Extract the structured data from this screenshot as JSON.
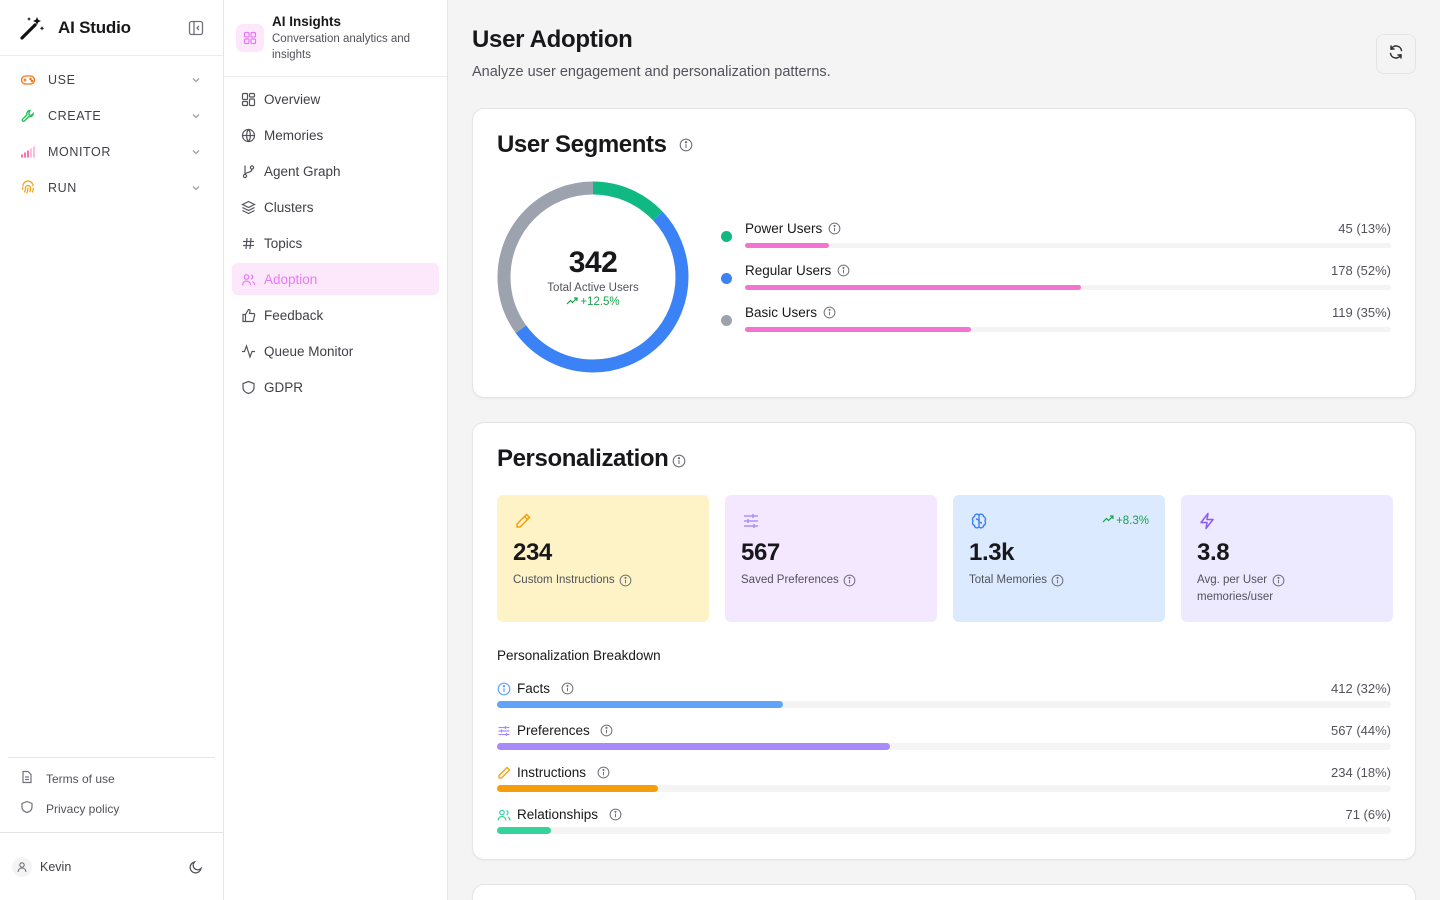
{
  "app": {
    "name": "AI Studio"
  },
  "sidebar": {
    "sections": [
      {
        "label": "USE",
        "icon": "gamepad-icon",
        "color": "#f97316"
      },
      {
        "label": "CREATE",
        "icon": "wrench-icon",
        "color": "#22c55e"
      },
      {
        "label": "MONITOR",
        "icon": "signal-icon",
        "color": "#ec4899"
      },
      {
        "label": "RUN",
        "icon": "fingerprint-icon",
        "color": "#f59e0b"
      }
    ],
    "footer_links": [
      {
        "label": "Terms of use",
        "icon": "document-icon"
      },
      {
        "label": "Privacy policy",
        "icon": "shield-icon"
      }
    ],
    "user": {
      "name": "Kevin"
    }
  },
  "subnav": {
    "title": "AI Insights",
    "subtitle": "Conversation analytics and insights",
    "items": [
      {
        "label": "Overview",
        "icon": "grid-icon"
      },
      {
        "label": "Memories",
        "icon": "globe-icon"
      },
      {
        "label": "Agent Graph",
        "icon": "git-branch-icon"
      },
      {
        "label": "Clusters",
        "icon": "layers-icon"
      },
      {
        "label": "Topics",
        "icon": "hash-icon"
      },
      {
        "label": "Adoption",
        "icon": "users-icon",
        "active": true
      },
      {
        "label": "Feedback",
        "icon": "thumbs-up-icon"
      },
      {
        "label": "Queue Monitor",
        "icon": "activity-icon"
      },
      {
        "label": "GDPR",
        "icon": "shield-icon"
      }
    ]
  },
  "page": {
    "title": "User Adoption",
    "subtitle": "Analyze user engagement and personalization patterns."
  },
  "segments": {
    "title": "User Segments",
    "total": "342",
    "total_label": "Total Active Users",
    "delta": "+12.5%",
    "items": [
      {
        "name": "Power Users",
        "value": "45 (13%)",
        "percent": 13,
        "dot_color": "#10b981"
      },
      {
        "name": "Regular Users",
        "value": "178 (52%)",
        "percent": 52,
        "dot_color": "#3b82f6"
      },
      {
        "name": "Basic Users",
        "value": "119 (35%)",
        "percent": 35,
        "dot_color": "#9ca3af"
      }
    ],
    "bar_color": "#f472d0"
  },
  "personalization": {
    "title": "Personalization",
    "stats": [
      {
        "value": "234",
        "label": "Custom Instructions",
        "sub": "",
        "delta": "",
        "icon": "pencil-icon",
        "bg": "#fef3c7",
        "icon_color": "#f59e0b"
      },
      {
        "value": "567",
        "label": "Saved Preferences",
        "sub": "",
        "delta": "",
        "icon": "sliders-icon",
        "bg": "#f3e8ff",
        "icon_color": "#a78bfa"
      },
      {
        "value": "1.3k",
        "label": "Total Memories",
        "sub": "",
        "delta": "+8.3%",
        "icon": "brain-icon",
        "bg": "#dbeafe",
        "icon_color": "#3b82f6"
      },
      {
        "value": "3.8",
        "label": "Avg. per User",
        "sub": "memories/user",
        "delta": "",
        "icon": "zap-icon",
        "bg": "#ede9fe",
        "icon_color": "#8b5cf6"
      }
    ],
    "breakdown_title": "Personalization Breakdown",
    "breakdown": [
      {
        "name": "Facts",
        "value": "412 (32%)",
        "percent": 32,
        "color": "#60a5fa",
        "icon": "info-circle-icon"
      },
      {
        "name": "Preferences",
        "value": "567 (44%)",
        "percent": 44,
        "color": "#a78bfa",
        "icon": "sliders-icon"
      },
      {
        "name": "Instructions",
        "value": "234 (18%)",
        "percent": 18,
        "color": "#f59e0b",
        "icon": "pencil-icon"
      },
      {
        "name": "Relationships",
        "value": "71 (6%)",
        "percent": 6,
        "color": "#34d399",
        "icon": "users-icon"
      }
    ]
  }
}
